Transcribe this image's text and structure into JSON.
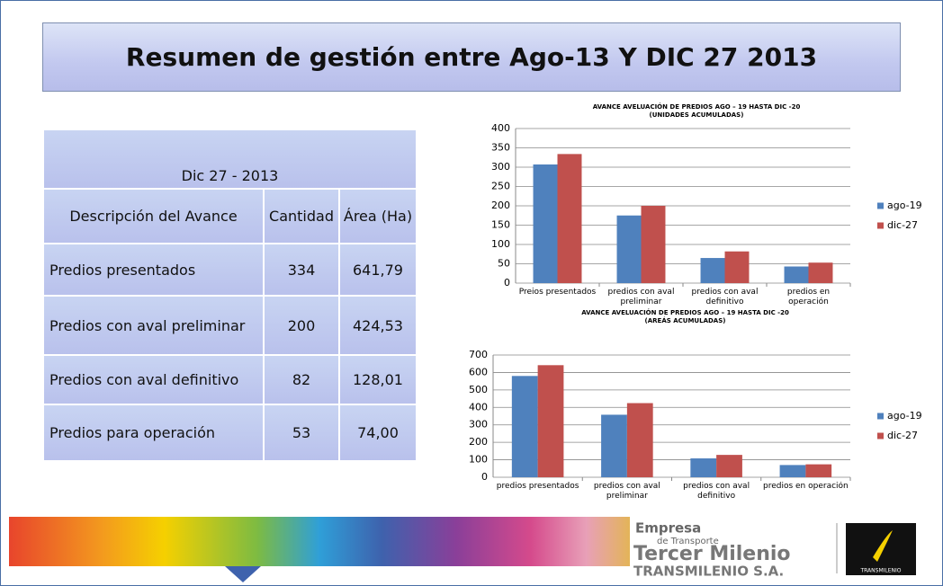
{
  "title": "Resumen de gestión entre Ago-13 Y DIC 27 2013",
  "table": {
    "caption": "Dic 27 - 2013",
    "header": [
      "Descripción del Avance",
      "Cantidad",
      "Área (Ha)"
    ],
    "rows": [
      [
        "Predios presentados",
        "334",
        "641,79"
      ],
      [
        "Predios con aval preliminar",
        "200",
        "424,53"
      ],
      [
        "Predios con aval definitivo",
        "82",
        "128,01"
      ],
      [
        "Predios para operación",
        "53",
        "74,00"
      ]
    ]
  },
  "chart_data": [
    {
      "type": "bar",
      "title": "AVANCE  AVELUACIÓN DE PREDIOS  AGO – 19 HASTA DIC -20",
      "subtitle": "(UNIDADES ACUMULADAS)",
      "categories": [
        "Preios presentados",
        "predios con aval preliminar",
        "predios con aval definitivo",
        "predios en operación"
      ],
      "series": [
        {
          "name": "ago-19",
          "color": "#4f81bd",
          "values": [
            307,
            175,
            65,
            43
          ]
        },
        {
          "name": "dic-27",
          "color": "#c0504d",
          "values": [
            334,
            200,
            82,
            53
          ]
        }
      ],
      "ylim": [
        0,
        400
      ],
      "yticks": [
        0,
        50,
        100,
        150,
        200,
        250,
        300,
        350,
        400
      ],
      "grid": true,
      "legend": "right"
    },
    {
      "type": "bar",
      "title": "AVANCE  AVELUACIÓN DE PREDIOS  AGO – 19 HASTA DIC -20",
      "subtitle": "(AREÁS  ACUMULADAS)",
      "categories": [
        "predios presentados",
        "predios con aval preliminar",
        "predios con aval definitivo",
        "predios en operación"
      ],
      "series": [
        {
          "name": "ago-19",
          "color": "#4f81bd",
          "values": [
            580,
            358,
            108,
            70
          ]
        },
        {
          "name": "dic-27",
          "color": "#c0504d",
          "values": [
            641.79,
            424.53,
            128.01,
            74
          ]
        }
      ],
      "ylim": [
        0,
        700
      ],
      "yticks": [
        0,
        100,
        200,
        300,
        400,
        500,
        600,
        700
      ],
      "grid": true,
      "legend": "right"
    }
  ],
  "footer": {
    "line1": "Empresa",
    "line2": "de Transporte",
    "line3": "Tercer Milenio",
    "line4": "TRANSMILENIO S.A.",
    "badge": "TRANSMILENIO"
  }
}
